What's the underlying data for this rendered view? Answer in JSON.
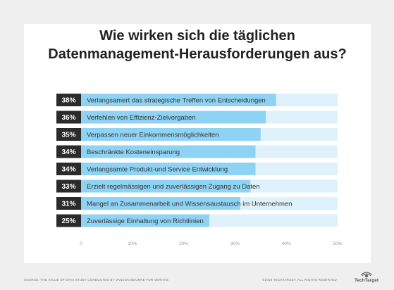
{
  "title_line1": "Wie wirken sich die täglichen",
  "title_line2": "Datenmanagement-Herausforderungen aus?",
  "footer_source": "SOURCE: THE VALUE OF DATA STUDY CONDUCTED BY VANSON BOURNE FOR VERITAS",
  "footer_copyright": "©2018 TECHTARGET. ALL RIGHTS RESERVED",
  "logo_text": "TechTarget",
  "colors": {
    "bar_fill": "#8fd3f4",
    "bar_track": "#dff1fb",
    "pct_box": "#2b2b2b",
    "pct_text": "#ffffff",
    "label_text": "#333333",
    "axis_text": "#999999"
  },
  "chart_data": {
    "type": "bar",
    "orientation": "horizontal",
    "categories": [
      "Verlangsamert das strategische Treffen von Entscheidungen",
      "Verfehlen von Effizienz-Zielvorgaben",
      "Verpassen neuer Einkommensmöglichkeiten",
      "Beschränkte Kosteneinsparung",
      "Verlangsamte Produkt-und Service Entwicklung",
      "Erzielt regelmässigen und zuverlässigen Zugang zu Daten",
      "Mangel an Zusammenarbeit und Wissensaustausch im Unternehmen",
      "Zuverlässige Einhaltung von Richtlinien"
    ],
    "values": [
      38,
      36,
      35,
      34,
      34,
      33,
      31,
      25
    ],
    "value_labels": [
      "38%",
      "36%",
      "35%",
      "34%",
      "34%",
      "33%",
      "31%",
      "25%"
    ],
    "xlim": [
      0,
      50
    ],
    "xticks": [
      0,
      10,
      20,
      30,
      40,
      50
    ],
    "xtick_labels": [
      "0",
      "10%",
      "20%",
      "30%",
      "40%",
      "50%"
    ],
    "grid": false,
    "legend": "none"
  }
}
